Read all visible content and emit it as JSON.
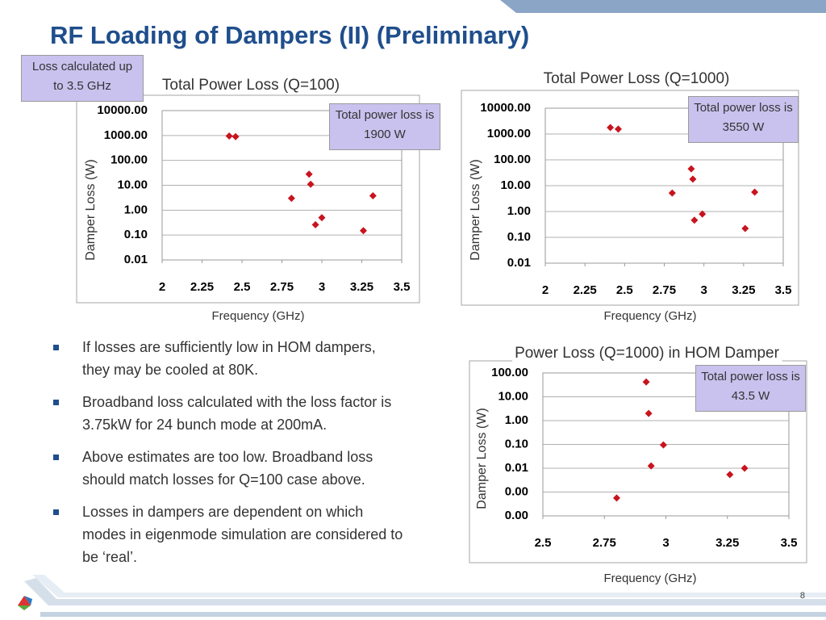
{
  "title": "RF Loading of Dampers (II) (Preliminary)",
  "note": "Loss calculated up to 3.5 GHz",
  "bullets": [
    "If losses are  sufficiently low in HOM dampers, they may be cooled at 80K.",
    "Broadband loss calculated with the loss factor is 3.75kW for 24 bunch mode at 200mA.",
    "Above estimates are too low. Broadband loss should match losses for Q=100 case above.",
    "Losses in dampers are dependent on which modes in eigenmode simulation are considered to be ‘real’."
  ],
  "page_number": "8",
  "chart_data": [
    {
      "type": "scatter",
      "title": "Total Power Loss (Q=100)",
      "annotation": "Total power loss is 1900 W",
      "x_label": "Frequency (GHz)",
      "y_label": "Damper Loss (W)",
      "yscale": "log",
      "grid": true,
      "color": "#c8141e",
      "x": [
        2.42,
        2.46,
        2.92,
        2.93,
        2.81,
        3.0,
        2.96,
        3.32,
        3.26
      ],
      "values": [
        950,
        900,
        28,
        11,
        3,
        0.5,
        0.26,
        3.8,
        0.15
      ],
      "xlim": [
        2,
        3.5
      ],
      "xticks": [
        2,
        2.25,
        2.5,
        2.75,
        3,
        3.25,
        3.5
      ],
      "ylim": [
        0.01,
        10000
      ],
      "yticks": [
        0.01,
        {
          "value": 0.1,
          "label": "0.10"
        },
        {
          "value": 1,
          "label": "1.00"
        },
        {
          "value": 10,
          "label": "10.00"
        },
        {
          "value": 100,
          "label": "100.00"
        },
        {
          "value": 1000,
          "label": "1000.00"
        },
        {
          "value": 10000,
          "label": "10000.00"
        }
      ]
    },
    {
      "type": "scatter",
      "title": "Total Power Loss (Q=1000)",
      "annotation": "Total power loss is 3550 W",
      "x_label": "Frequency (GHz)",
      "y_label": "Damper Loss (W)",
      "yscale": "log",
      "grid": true,
      "color": "#c8141e",
      "x": [
        2.41,
        2.46,
        2.92,
        2.93,
        2.8,
        2.99,
        2.94,
        3.32,
        3.26
      ],
      "values": [
        1780,
        1550,
        45,
        18,
        5.2,
        0.8,
        0.46,
        5.6,
        0.22
      ],
      "xlim": [
        2,
        3.5
      ],
      "xticks": [
        2,
        2.25,
        2.5,
        2.75,
        3,
        3.25,
        3.5
      ],
      "ylim": [
        0.01,
        10000
      ],
      "yticks": [
        0.01,
        {
          "value": 0.1,
          "label": "0.10"
        },
        {
          "value": 1,
          "label": "1.00"
        },
        {
          "value": 10,
          "label": "10.00"
        },
        {
          "value": 100,
          "label": "100.00"
        },
        {
          "value": 1000,
          "label": "1000.00"
        },
        {
          "value": 10000,
          "label": "10000.00"
        }
      ]
    },
    {
      "type": "scatter",
      "title": "Power Loss (Q=1000) in HOM Damper",
      "annotation": "Total power loss is 43.5 W",
      "x_label": "Frequency (GHz)",
      "y_label": "Damper Loss (W)",
      "yscale": "log",
      "grid": true,
      "color": "#c8141e",
      "x": [
        2.92,
        2.93,
        2.99,
        2.94,
        2.8,
        3.26,
        3.32
      ],
      "values": [
        42,
        2,
        0.095,
        0.0125,
        0.00056,
        0.0054,
        0.01
      ],
      "xlim": [
        2.5,
        3.5
      ],
      "xticks": [
        2.5,
        2.75,
        3,
        3.25,
        3.5
      ],
      "ylim": [
        0.0001,
        100
      ],
      "yticks": [
        {
          "value": 0.0001,
          "label": "0.00"
        },
        {
          "value": 0.001,
          "label": "0.00"
        },
        0.01,
        {
          "value": 0.1,
          "label": "0.10"
        },
        {
          "value": 1,
          "label": "1.00"
        },
        {
          "value": 10,
          "label": "10.00"
        },
        {
          "value": 100,
          "label": "100.00"
        }
      ]
    }
  ]
}
